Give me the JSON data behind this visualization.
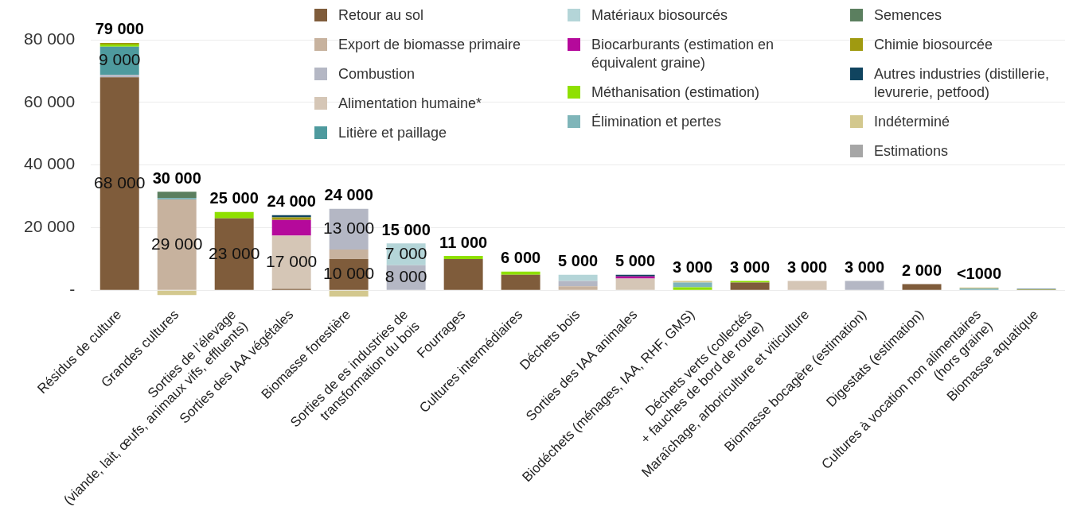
{
  "chart_data": {
    "type": "bar",
    "stacked": true,
    "grid": "y",
    "legend": "top right",
    "categories": [
      "Résidus de culture",
      "Grandes cultures",
      "Sorties de l’élevage\n(viande, lait, œufs, animaux vifs, effluents)",
      "Sorties des IAA végétales",
      "Biomasse forestière",
      "Sorties de es industries de\ntransformation du bois",
      "Fourrages",
      "Cultures intermédiaires",
      "Déchets bois",
      "Sorties des IAA animales",
      "Biodéchets (ménages, IAA, RHF, GMS)",
      "Déchets verts (collectés\n+ fauches de bord de route)",
      "Maraîchage, arboriculture et viticulture",
      "Biomasse bocagère (estimation)",
      "Digestats (estimation)",
      "Cultures à vocation non alimentaires\n(hors graine)",
      "Biomasse aquatique"
    ],
    "ylim": [
      -2500,
      80000
    ],
    "yticks": [
      {
        "value": 0,
        "label": "-"
      },
      {
        "value": 20000,
        "label": "20 000"
      },
      {
        "value": 40000,
        "label": "40 000"
      },
      {
        "value": 60000,
        "label": "60 000"
      },
      {
        "value": 80000,
        "label": "80 000"
      }
    ],
    "series": [
      {
        "name": "Retour au sol",
        "color": "#7f5c3b",
        "values": [
          68000,
          null,
          23000,
          500,
          10000,
          null,
          10000,
          5000,
          null,
          null,
          null,
          2500,
          null,
          null,
          2000,
          null,
          null
        ],
        "value_labels": [
          "68 000",
          null,
          "23 000",
          null,
          "10 000",
          null,
          null,
          null,
          null,
          null,
          null,
          null,
          null,
          null,
          null,
          null,
          null
        ]
      },
      {
        "name": "Export de biomasse primaire",
        "color": "#c7b29e",
        "values": [
          null,
          29000,
          null,
          null,
          3000,
          null,
          null,
          null,
          1300,
          null,
          null,
          null,
          300,
          null,
          null,
          null,
          null
        ],
        "value_labels": [
          null,
          "29 000",
          null,
          null,
          null,
          null,
          null,
          null,
          null,
          null,
          null,
          null,
          null,
          null,
          null,
          null,
          null
        ]
      },
      {
        "name": "Combustion",
        "color": "#b4b7c4",
        "values": [
          800,
          null,
          null,
          null,
          13000,
          8000,
          null,
          null,
          1700,
          null,
          null,
          null,
          null,
          3000,
          null,
          null,
          null
        ],
        "value_labels": [
          null,
          null,
          null,
          null,
          "13 000",
          "8 000",
          null,
          null,
          null,
          null,
          null,
          null,
          null,
          null,
          null,
          null,
          null
        ]
      },
      {
        "name": "Alimentation humaine*",
        "color": "#d5c6b6",
        "values": [
          null,
          null,
          null,
          17000,
          null,
          null,
          null,
          null,
          null,
          3800,
          null,
          null,
          2700,
          null,
          null,
          null,
          null
        ],
        "value_labels": [
          null,
          null,
          null,
          "17 000",
          null,
          null,
          null,
          null,
          null,
          null,
          null,
          null,
          null,
          null,
          null,
          null,
          null
        ]
      },
      {
        "name": "Litière et paillage",
        "color": "#4e9a9e",
        "values": [
          9000,
          null,
          null,
          null,
          null,
          null,
          null,
          null,
          null,
          null,
          null,
          null,
          null,
          null,
          null,
          null,
          null
        ],
        "value_labels": [
          "9 000",
          null,
          null,
          null,
          null,
          null,
          null,
          null,
          null,
          null,
          null,
          null,
          null,
          null,
          null,
          null,
          null
        ]
      },
      {
        "name": "Matériaux biosourcés",
        "color": "#b4d5d8",
        "values": [
          null,
          null,
          null,
          null,
          null,
          7000,
          null,
          null,
          2000,
          null,
          null,
          null,
          null,
          null,
          null,
          null,
          null
        ],
        "value_labels": [
          null,
          null,
          null,
          null,
          null,
          "7 000",
          null,
          null,
          null,
          null,
          null,
          null,
          null,
          null,
          null,
          null,
          null
        ]
      },
      {
        "name": "Biocarburants (estimation en équivalent graine)",
        "color": "#b5099b",
        "values": [
          null,
          null,
          null,
          5000,
          null,
          null,
          null,
          null,
          null,
          700,
          null,
          null,
          null,
          null,
          null,
          null,
          null
        ]
      },
      {
        "name": "Méthanisation (estimation)",
        "color": "#8fe000",
        "values": [
          700,
          null,
          2000,
          null,
          null,
          null,
          1000,
          1000,
          null,
          null,
          1000,
          500,
          null,
          null,
          null,
          null,
          null
        ]
      },
      {
        "name": "Élimination et pertes",
        "color": "#7fb5b9",
        "values": [
          null,
          500,
          null,
          null,
          null,
          null,
          null,
          null,
          null,
          null,
          1500,
          null,
          null,
          null,
          null,
          600,
          null
        ]
      },
      {
        "name": "Semences",
        "color": "#5b7f5f",
        "values": [
          null,
          2000,
          null,
          null,
          null,
          null,
          null,
          null,
          null,
          null,
          null,
          null,
          null,
          null,
          null,
          null,
          null
        ]
      },
      {
        "name": "Chimie biosourcée",
        "color": "#a09a10",
        "values": [
          500,
          null,
          null,
          800,
          null,
          null,
          null,
          null,
          null,
          null,
          null,
          null,
          null,
          null,
          null,
          null,
          300
        ]
      },
      {
        "name": "Autres industries (distillerie, levurerie, petfood)",
        "color": "#10445f",
        "values": [
          null,
          null,
          null,
          700,
          null,
          null,
          null,
          null,
          null,
          500,
          null,
          null,
          null,
          null,
          null,
          null,
          200
        ]
      },
      {
        "name": "Indéterminé",
        "color": "#d3c88e",
        "values": [
          null,
          -1500,
          null,
          null,
          -2000,
          null,
          null,
          null,
          null,
          null,
          500,
          null,
          null,
          null,
          null,
          300,
          null
        ]
      },
      {
        "name": "Estimations",
        "color": "#a6a6a6",
        "values": [
          null,
          null,
          null,
          null,
          null,
          null,
          null,
          null,
          null,
          null,
          null,
          null,
          null,
          null,
          null,
          null,
          null
        ]
      }
    ],
    "totals": [
      "79 000",
      "30 000",
      "25 000",
      "24 000",
      "24 000",
      "15 000",
      "11 000",
      "6 000",
      "5 000",
      "5 000",
      "3 000",
      "3 000",
      "3 000",
      "3 000",
      "2 000",
      "<1000",
      null
    ]
  }
}
